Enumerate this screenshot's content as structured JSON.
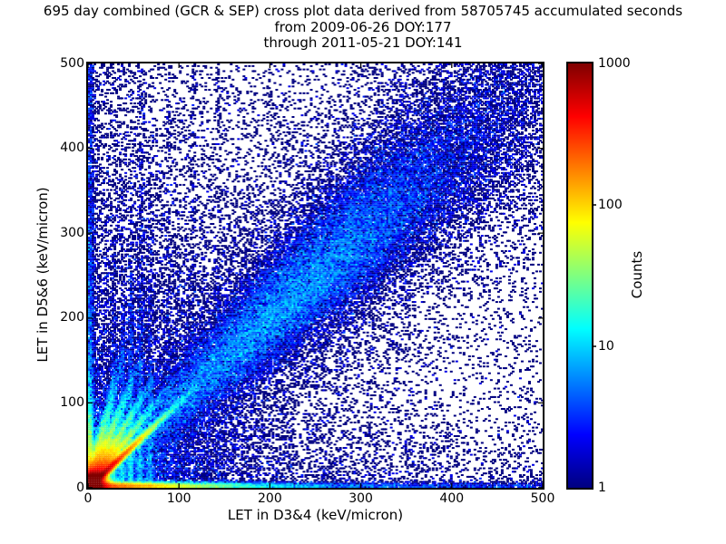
{
  "figure": {
    "title": "695 day combined (GCR & SEP) cross plot data derived from 58705745 accumulated seconds",
    "subtitle1": "from 2009-06-26 DOY:177",
    "subtitle2": "through 2011-05-21 DOY:141",
    "background": "#ffffff"
  },
  "chart_data": {
    "type": "heatmap",
    "title": "695 day combined (GCR & SEP) cross plot data derived from 58705745 accumulated seconds",
    "subtitle1": "from 2009-06-26 DOY:177",
    "subtitle2": "through 2011-05-21 DOY:141",
    "xlabel": "LET in D3&4 (keV/micron)",
    "ylabel": "LET in D5&6 (keV/micron)",
    "xlim": [
      0,
      500
    ],
    "ylim": [
      0,
      500
    ],
    "xticks": [
      0,
      100,
      200,
      300,
      400,
      500
    ],
    "yticks": [
      0,
      100,
      200,
      300,
      400,
      500
    ],
    "grid": false,
    "colormap": "jet",
    "background": "#ffffff",
    "frame_color": "#000000",
    "colorbar": {
      "label": "Counts",
      "scale": "log",
      "min": 1,
      "max": 1000,
      "ticks": [
        1,
        10,
        100,
        1000
      ],
      "legend_position": "right"
    },
    "render_seed": 42,
    "bin_size": 2,
    "features": {
      "origin_hotspot": {
        "x": 2,
        "y": 2,
        "amplitude": 2500,
        "sigma": 8
      },
      "origin_bloom": {
        "amplitude": 12,
        "decay": 35
      },
      "fan_streaks": [
        {
          "slope": 1.0,
          "amplitude": 2000,
          "decay": 26,
          "width": 2.2,
          "max_distance": 170
        },
        {
          "slope": 1.35,
          "amplitude": 600,
          "decay": 26,
          "width": 2.6,
          "max_distance": 150
        },
        {
          "slope": 1.8,
          "amplitude": 450,
          "decay": 28,
          "width": 2.8,
          "max_distance": 150
        },
        {
          "slope": 2.6,
          "amplitude": 350,
          "decay": 30,
          "width": 3.0,
          "max_distance": 160
        },
        {
          "slope": 4.2,
          "amplitude": 250,
          "decay": 32,
          "width": 3.0,
          "max_distance": 170
        }
      ],
      "bottom_band": {
        "y": 2,
        "sigma": 2.5,
        "amp_terms": [
          [
            400,
            50
          ],
          [
            10,
            250
          ]
        ],
        "baseline": 0.8
      },
      "left_band": {
        "x": 2,
        "sigma": 2.2,
        "amp_terms": [
          [
            220,
            30
          ],
          [
            5,
            250
          ]
        ],
        "baseline": 1.2
      },
      "diagonal_band": {
        "center_peak": 5.5,
        "peak_at": 300,
        "peak_width": 220,
        "tail_amp": 1.2,
        "tail_decay": 400,
        "width_base": 7,
        "width_growth": 0.055
      },
      "diagonal_halo": {
        "amplitude": 0.8,
        "decay": 700,
        "width_base": 35,
        "width_growth": 0.1
      },
      "vertical_streaks": [
        {
          "x": 28,
          "amplitude": 6,
          "decay": 90,
          "sigma": 1.6
        },
        {
          "x": 38,
          "amplitude": 8,
          "decay": 90,
          "sigma": 1.6
        },
        {
          "x": 47,
          "amplitude": 12,
          "decay": 90,
          "sigma": 1.6
        },
        {
          "x": 57,
          "amplitude": 9,
          "decay": 110,
          "sigma": 1.6
        },
        {
          "x": 68,
          "amplitude": 6,
          "decay": 110,
          "sigma": 1.6
        }
      ],
      "faint_vertical_streaks": [
        {
          "x": 60,
          "amplitude": 0.35,
          "sigma": 1.5
        },
        {
          "x": 88,
          "amplitude": 0.3,
          "sigma": 1.5
        },
        {
          "x": 115,
          "amplitude": 0.3,
          "sigma": 1.5
        },
        {
          "x": 143,
          "amplitude": 0.28,
          "sigma": 1.5
        }
      ],
      "background_terms": {
        "left_glow": {
          "amplitude": 1.0,
          "x_decay": 55,
          "y_decay": 450
        },
        "bottom_glow": {
          "amplitude": 0.8,
          "y_decay": 60,
          "x_decay": 350
        },
        "origin_glow": {
          "amplitude": 0.22,
          "x_decay": 350,
          "y_decay": 350
        },
        "uniform": 0.03,
        "wedge": {
          "amplitude": 0.5,
          "decay": 250,
          "slope_min": 1.1,
          "slope_max": 5
        }
      }
    }
  }
}
